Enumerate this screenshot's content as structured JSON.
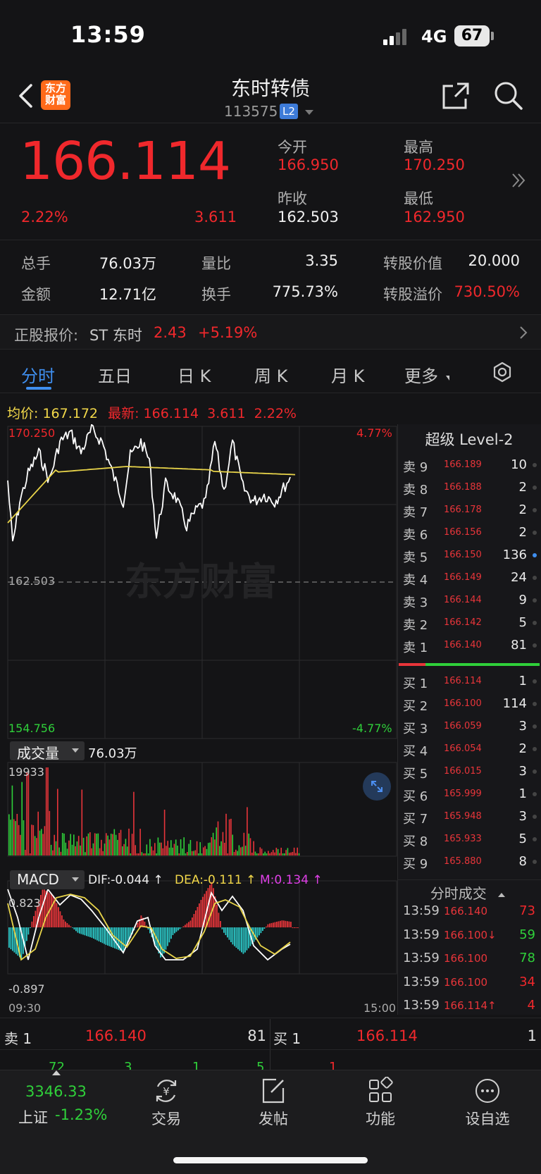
{
  "status": {
    "time": "13:59",
    "network": "4G",
    "battery": "67"
  },
  "header": {
    "logo": "东方\n财富",
    "title": "东时转债",
    "code": "113575",
    "level_badge": "L2"
  },
  "quote": {
    "price": "166.114",
    "change_pct": "2.22%",
    "change": "3.611",
    "open_label": "今开",
    "open": "166.950",
    "high_label": "最高",
    "high": "170.250",
    "prev_close_label": "昨收",
    "prev_close": "162.503",
    "low_label": "最低",
    "low": "162.950"
  },
  "stats": [
    {
      "label": "总手",
      "value": "76.03万"
    },
    {
      "label": "量比",
      "value": "3.35"
    },
    {
      "label": "转股价值",
      "value": "20.000"
    },
    {
      "label": "金额",
      "value": "12.71亿"
    },
    {
      "label": "换手",
      "value": "775.73%"
    },
    {
      "label": "转股溢价",
      "value": "730.50%"
    }
  ],
  "stock_quote": {
    "label": "正股报价:",
    "name": "ST 东时",
    "price": "2.43",
    "change_pct": "+5.19%"
  },
  "tabs": [
    "分时",
    "五日",
    "日 K",
    "周 K",
    "月 K",
    "更多"
  ],
  "chart_header": {
    "avg_label": "均价:",
    "avg": "167.172",
    "latest_label": "最新:",
    "latest": "166.114",
    "chg": "3.611",
    "pct": "2.22%"
  },
  "price_chart": {
    "y_top": "170.250",
    "y_mid": "162.503",
    "y_bottom": "154.756",
    "pct_top": "4.77%",
    "pct_bottom": "-4.77%",
    "watermark": "东方财富"
  },
  "volume_panel": {
    "selector": "成交量",
    "total": "76.03万",
    "max_label": "19933"
  },
  "macd_panel": {
    "selector": "MACD",
    "dif": "DIF:-0.044 ↑",
    "dea": "DEA:-0.111 ↑",
    "m": "M:0.134 ↑",
    "y_top": "0.823",
    "y_bottom": "-0.897",
    "t_start": "09:30",
    "t_end": "15:00"
  },
  "orderbook": {
    "title": "超级 Level-2",
    "asks": [
      {
        "label": "卖 9",
        "price": "166.189",
        "qty": "10"
      },
      {
        "label": "卖 8",
        "price": "166.188",
        "qty": "2"
      },
      {
        "label": "卖 7",
        "price": "166.178",
        "qty": "2"
      },
      {
        "label": "卖 6",
        "price": "166.156",
        "qty": "2"
      },
      {
        "label": "卖 5",
        "price": "166.150",
        "qty": "136"
      },
      {
        "label": "卖 4",
        "price": "166.149",
        "qty": "24"
      },
      {
        "label": "卖 3",
        "price": "166.144",
        "qty": "9"
      },
      {
        "label": "卖 2",
        "price": "166.142",
        "qty": "5"
      },
      {
        "label": "卖 1",
        "price": "166.140",
        "qty": "81"
      }
    ],
    "bids": [
      {
        "label": "买 1",
        "price": "166.114",
        "qty": "1"
      },
      {
        "label": "买 2",
        "price": "166.100",
        "qty": "114"
      },
      {
        "label": "买 3",
        "price": "166.059",
        "qty": "3"
      },
      {
        "label": "买 4",
        "price": "166.054",
        "qty": "2"
      },
      {
        "label": "买 5",
        "price": "166.015",
        "qty": "3"
      },
      {
        "label": "买 6",
        "price": "165.999",
        "qty": "1"
      },
      {
        "label": "买 7",
        "price": "165.948",
        "qty": "3"
      },
      {
        "label": "买 8",
        "price": "165.933",
        "qty": "5"
      },
      {
        "label": "买 9",
        "price": "165.880",
        "qty": "8"
      }
    ]
  },
  "trades": {
    "title": "分时成交",
    "rows": [
      {
        "time": "13:59",
        "price": "166.140",
        "vol": "73",
        "dir": "up"
      },
      {
        "time": "13:59",
        "price": "166.100↓",
        "vol": "59",
        "dir": "down"
      },
      {
        "time": "13:59",
        "price": "166.100",
        "vol": "78",
        "dir": "down"
      },
      {
        "time": "13:59",
        "price": "166.100",
        "vol": "34",
        "dir": "up"
      },
      {
        "time": "13:59",
        "price": "166.114↑",
        "vol": "4",
        "dir": "up"
      }
    ]
  },
  "bottom_quote": {
    "ask_label": "卖 1",
    "ask_price": "166.140",
    "ask_qty": "81",
    "bid_label": "买 1",
    "bid_price": "166.114",
    "bid_qty": "1"
  },
  "bottom_partial": [
    "72",
    "3",
    "1",
    "5",
    "1"
  ],
  "index": {
    "value": "3346.33",
    "name": "上证",
    "pct": "-1.23%"
  },
  "nav": [
    "交易",
    "发帖",
    "功能",
    "设自选"
  ],
  "colors": {
    "red": "#f0282c",
    "green": "#2fd03a",
    "yellow": "#f2d84a",
    "accent": "#3f8ff0"
  }
}
